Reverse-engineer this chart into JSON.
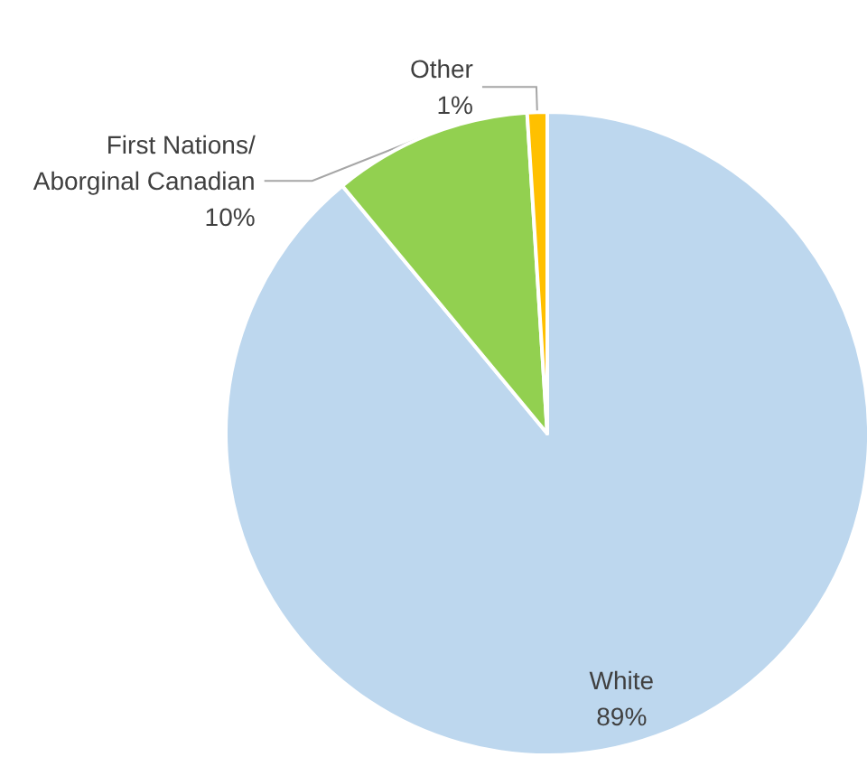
{
  "chart_data": {
    "type": "pie",
    "categories": [
      "White",
      "First Nations/Aborginal Canadian",
      "Other"
    ],
    "values": [
      89,
      10,
      1
    ],
    "value_labels": [
      "89%",
      "10%",
      "1%"
    ],
    "colors": [
      "#bdd7ee",
      "#92d050",
      "#ffc000"
    ]
  }
}
